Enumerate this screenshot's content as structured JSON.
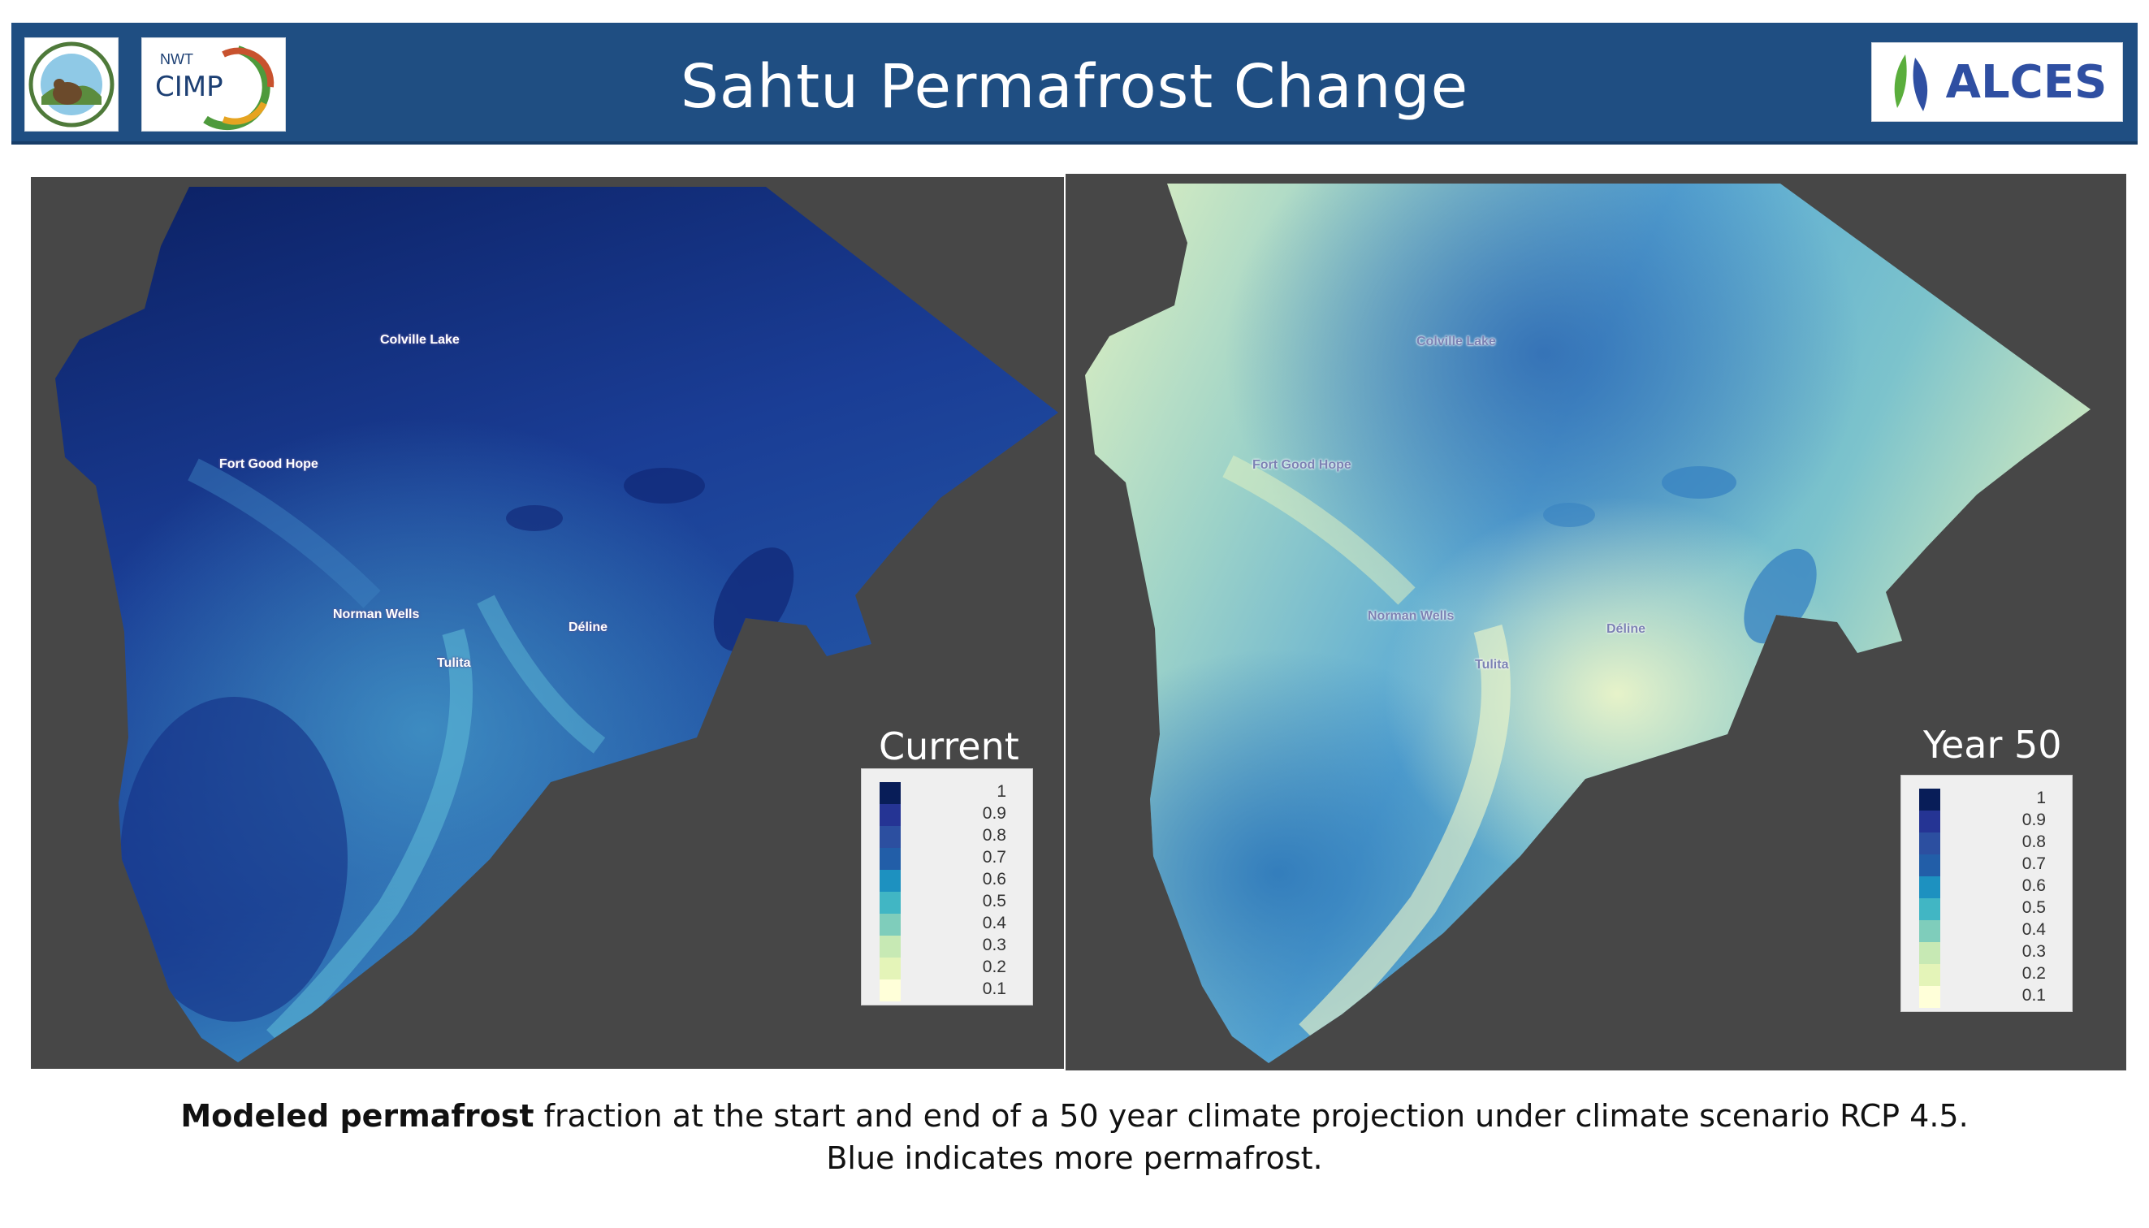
{
  "header": {
    "title": "Sahtu Permafrost Change",
    "logo_cimp_small": "NWT",
    "logo_cimp": "CIMP",
    "logo_alces": "ALCES"
  },
  "maps": [
    {
      "legend_title": "Current",
      "towns": [
        "Colville Lake",
        "Fort Good Hope",
        "Norman Wells",
        "Tulita",
        "Déline"
      ]
    },
    {
      "legend_title": "Year 50",
      "towns": [
        "Colville Lake",
        "Fort Good Hope",
        "Norman Wells",
        "Tulita",
        "Déline"
      ]
    }
  ],
  "legend": {
    "labels": [
      "1",
      "0.9",
      "0.8",
      "0.7",
      "0.6",
      "0.5",
      "0.4",
      "0.3",
      "0.2",
      "0.1"
    ],
    "colors": [
      "#081d58",
      "#253494",
      "#2c4fa0",
      "#225ea8",
      "#1d91c0",
      "#41b6c4",
      "#7fcdbb",
      "#c7e9b4",
      "#e4f4b8",
      "#ffffd9"
    ]
  },
  "caption": {
    "bold": "Modeled permafrost",
    "line1_rest": " fraction at the start and end of a 50 year climate projection under climate scenario RCP 4.5.",
    "line2": "Blue indicates more permafrost."
  }
}
